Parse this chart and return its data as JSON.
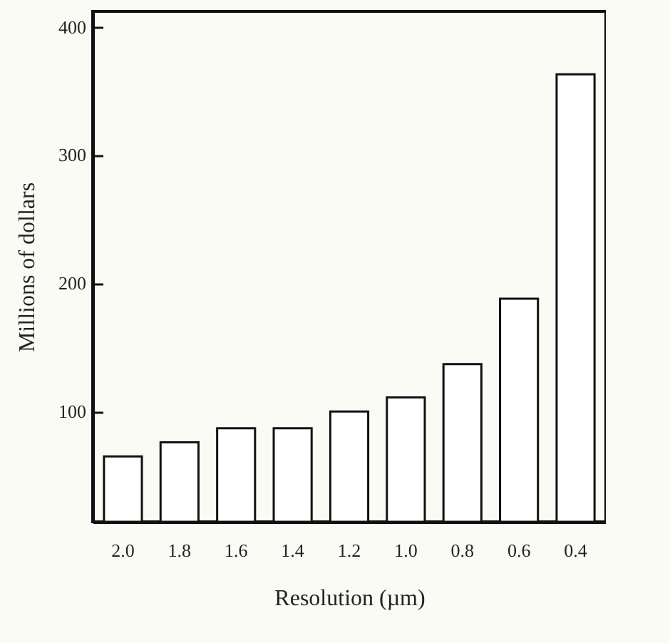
{
  "chart_data": {
    "type": "bar",
    "xlabel": "Resolution (µm)",
    "ylabel": "Millions of dollars",
    "categories": [
      "2.0",
      "1.8",
      "1.6",
      "1.4",
      "1.2",
      "1.0",
      "0.8",
      "0.6",
      "0.4"
    ],
    "values": [
      65,
      76,
      87,
      87,
      100,
      111,
      137,
      188,
      363
    ],
    "color": "#ffffff",
    "ylim": [
      14,
      412
    ],
    "yticks": [
      100,
      200,
      300,
      400
    ],
    "grid": false
  }
}
